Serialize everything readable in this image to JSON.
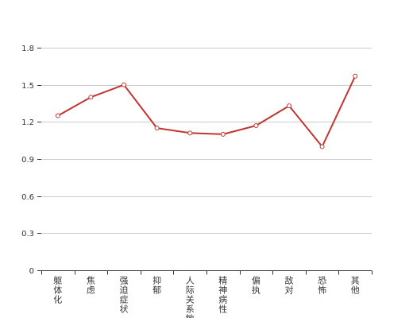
{
  "chart_data": {
    "type": "line",
    "title": "",
    "xlabel": "",
    "ylabel": "",
    "categories": [
      [
        "躯",
        "体",
        "化"
      ],
      [
        "焦",
        "虑"
      ],
      [
        "强",
        "迫",
        "症",
        "状"
      ],
      [
        "抑",
        "郁"
      ],
      [
        "人",
        "际",
        "关",
        "系",
        "敏"
      ],
      [
        "精",
        "神",
        "病",
        "性"
      ],
      [
        "偏",
        "执"
      ],
      [
        "敌",
        "对"
      ],
      [
        "恐",
        "怖"
      ],
      [
        "其",
        "他"
      ]
    ],
    "series": [
      {
        "values": [
          1.25,
          1.4,
          1.5,
          1.15,
          1.11,
          1.1,
          1.17,
          1.33,
          1.0,
          1.57
        ]
      }
    ],
    "ylim": [
      0,
      1.8
    ],
    "yticks": [
      "0",
      "0.3",
      "0.6",
      "0.9",
      "1.2",
      "1.5",
      "1.8"
    ],
    "grid": true,
    "colors": {
      "line": "#c23531",
      "grid": "#cccccc",
      "axis": "#333333",
      "point_fill": "#ffffff"
    }
  }
}
